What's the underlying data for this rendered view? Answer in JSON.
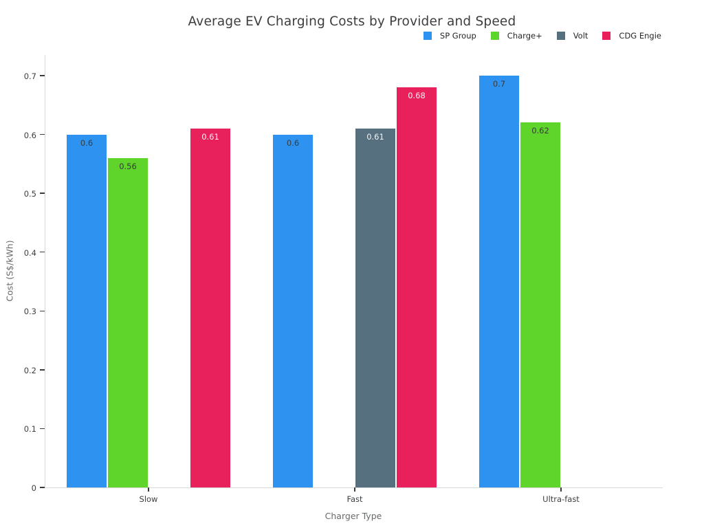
{
  "chart_data": {
    "type": "bar",
    "title": "Average EV Charging Costs by Provider and Speed",
    "xlabel": "Charger Type",
    "ylabel": "Cost (S$/kWh)",
    "categories": [
      "Slow",
      "Fast",
      "Ultra-fast"
    ],
    "series": [
      {
        "name": "SP Group",
        "color": "#2E93F0",
        "label_style": "dark",
        "values": [
          0.6,
          0.6,
          0.7
        ]
      },
      {
        "name": "Charge+",
        "color": "#5FD42B",
        "label_style": "dark",
        "values": [
          0.56,
          null,
          0.62
        ]
      },
      {
        "name": "Volt",
        "color": "#56707F",
        "label_style": "light",
        "values": [
          null,
          0.61,
          null
        ]
      },
      {
        "name": "CDG Engie",
        "color": "#E8215D",
        "label_style": "light",
        "values": [
          0.61,
          0.68,
          null
        ]
      }
    ],
    "bar_value_labels": [
      "0.6",
      "0.56",
      "0.61",
      "0.6",
      "0.61",
      "0.68",
      "0.7",
      "0.62"
    ],
    "ylim": [
      0,
      0.7
    ],
    "yticks": [
      0,
      0.1,
      0.2,
      0.3,
      0.4,
      0.5,
      0.6,
      0.7
    ],
    "grid": false,
    "legend_position": "top-right",
    "label_colors": {
      "dark": "#3a3a3a",
      "light": "#f5f2f3"
    }
  }
}
